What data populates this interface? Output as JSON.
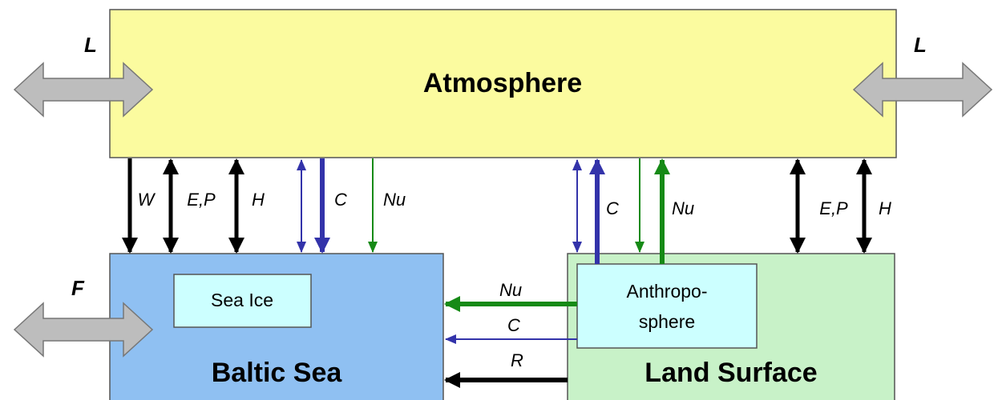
{
  "boxes": {
    "atmosphere": "Atmosphere",
    "baltic_sea": "Baltic Sea",
    "land_surface": "Land Surface",
    "sea_ice": "Sea Ice",
    "anthroposphere": [
      "Anthropo-",
      "sphere"
    ]
  },
  "exchange_labels": {
    "left_atmosphere": "L",
    "right_atmosphere": "L",
    "left_sea": "F"
  },
  "flux_labels": {
    "sea_w": "W",
    "sea_ep": "E,P",
    "sea_h": "H",
    "sea_c": "C",
    "sea_nu": "Nu",
    "land_c": "C",
    "land_nu": "Nu",
    "land_ep": "E,P",
    "land_h": "H",
    "lateral_nu": "Nu",
    "lateral_c": "C",
    "lateral_r": "R"
  }
}
